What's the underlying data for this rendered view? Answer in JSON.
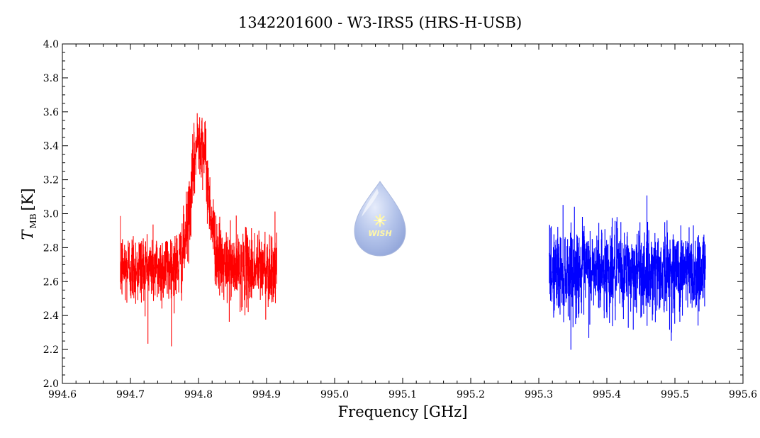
{
  "chart_data": {
    "type": "line",
    "title": "1342201600 - W3-IRS5 (HRS-H-USB)",
    "xlabel": "Frequency [GHz]",
    "ylabel_main": "T",
    "ylabel_sub": "MB",
    "ylabel_unit": "[K]",
    "xlim": [
      994.6,
      995.6
    ],
    "ylim": [
      2.0,
      4.0
    ],
    "x_ticks": [
      "994.6",
      "994.7",
      "994.8",
      "994.9",
      "995.0",
      "995.1",
      "995.2",
      "995.3",
      "995.4",
      "995.5",
      "995.6"
    ],
    "y_ticks": [
      "2.0",
      "2.2",
      "2.4",
      "2.6",
      "2.8",
      "3.0",
      "3.2",
      "3.4",
      "3.6",
      "3.8",
      "4.0"
    ],
    "grid": false,
    "logo_text": "WISH",
    "series": [
      {
        "color": "#ff0000",
        "x_range": [
          994.685,
          994.915
        ],
        "baseline": 2.68,
        "noise": 0.11,
        "peak": {
          "x": 994.802,
          "amplitude": 0.78,
          "width": 0.012
        },
        "max": 3.76,
        "min": 2.21
      },
      {
        "color": "#0000ff",
        "x_range": [
          995.315,
          995.545
        ],
        "baseline": 2.66,
        "noise": 0.13,
        "max": 3.23,
        "min": 2.2
      }
    ]
  }
}
